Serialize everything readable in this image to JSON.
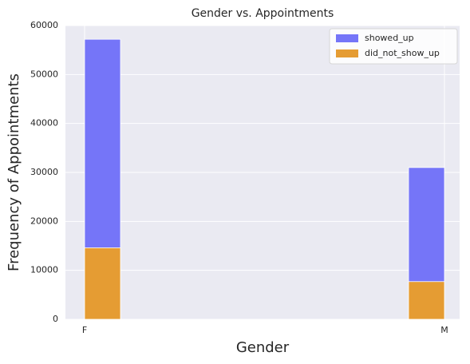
{
  "chart_data": {
    "type": "bar",
    "title": "Gender vs. Appointments",
    "x_label": "Gender",
    "y_label": "Frequency of Appointments",
    "categories": [
      "F",
      "M"
    ],
    "series": [
      {
        "name": "showed_up",
        "color": "#7575f8",
        "values": [
          57200,
          31000
        ]
      },
      {
        "name": "did_not_show_up",
        "color": "#e59c33",
        "values": [
          14600,
          7700
        ]
      }
    ],
    "ylim": [
      0,
      60000
    ],
    "yticks": [
      0,
      10000,
      20000,
      30000,
      40000,
      50000,
      60000
    ],
    "grid": true,
    "legend": "upper right"
  }
}
